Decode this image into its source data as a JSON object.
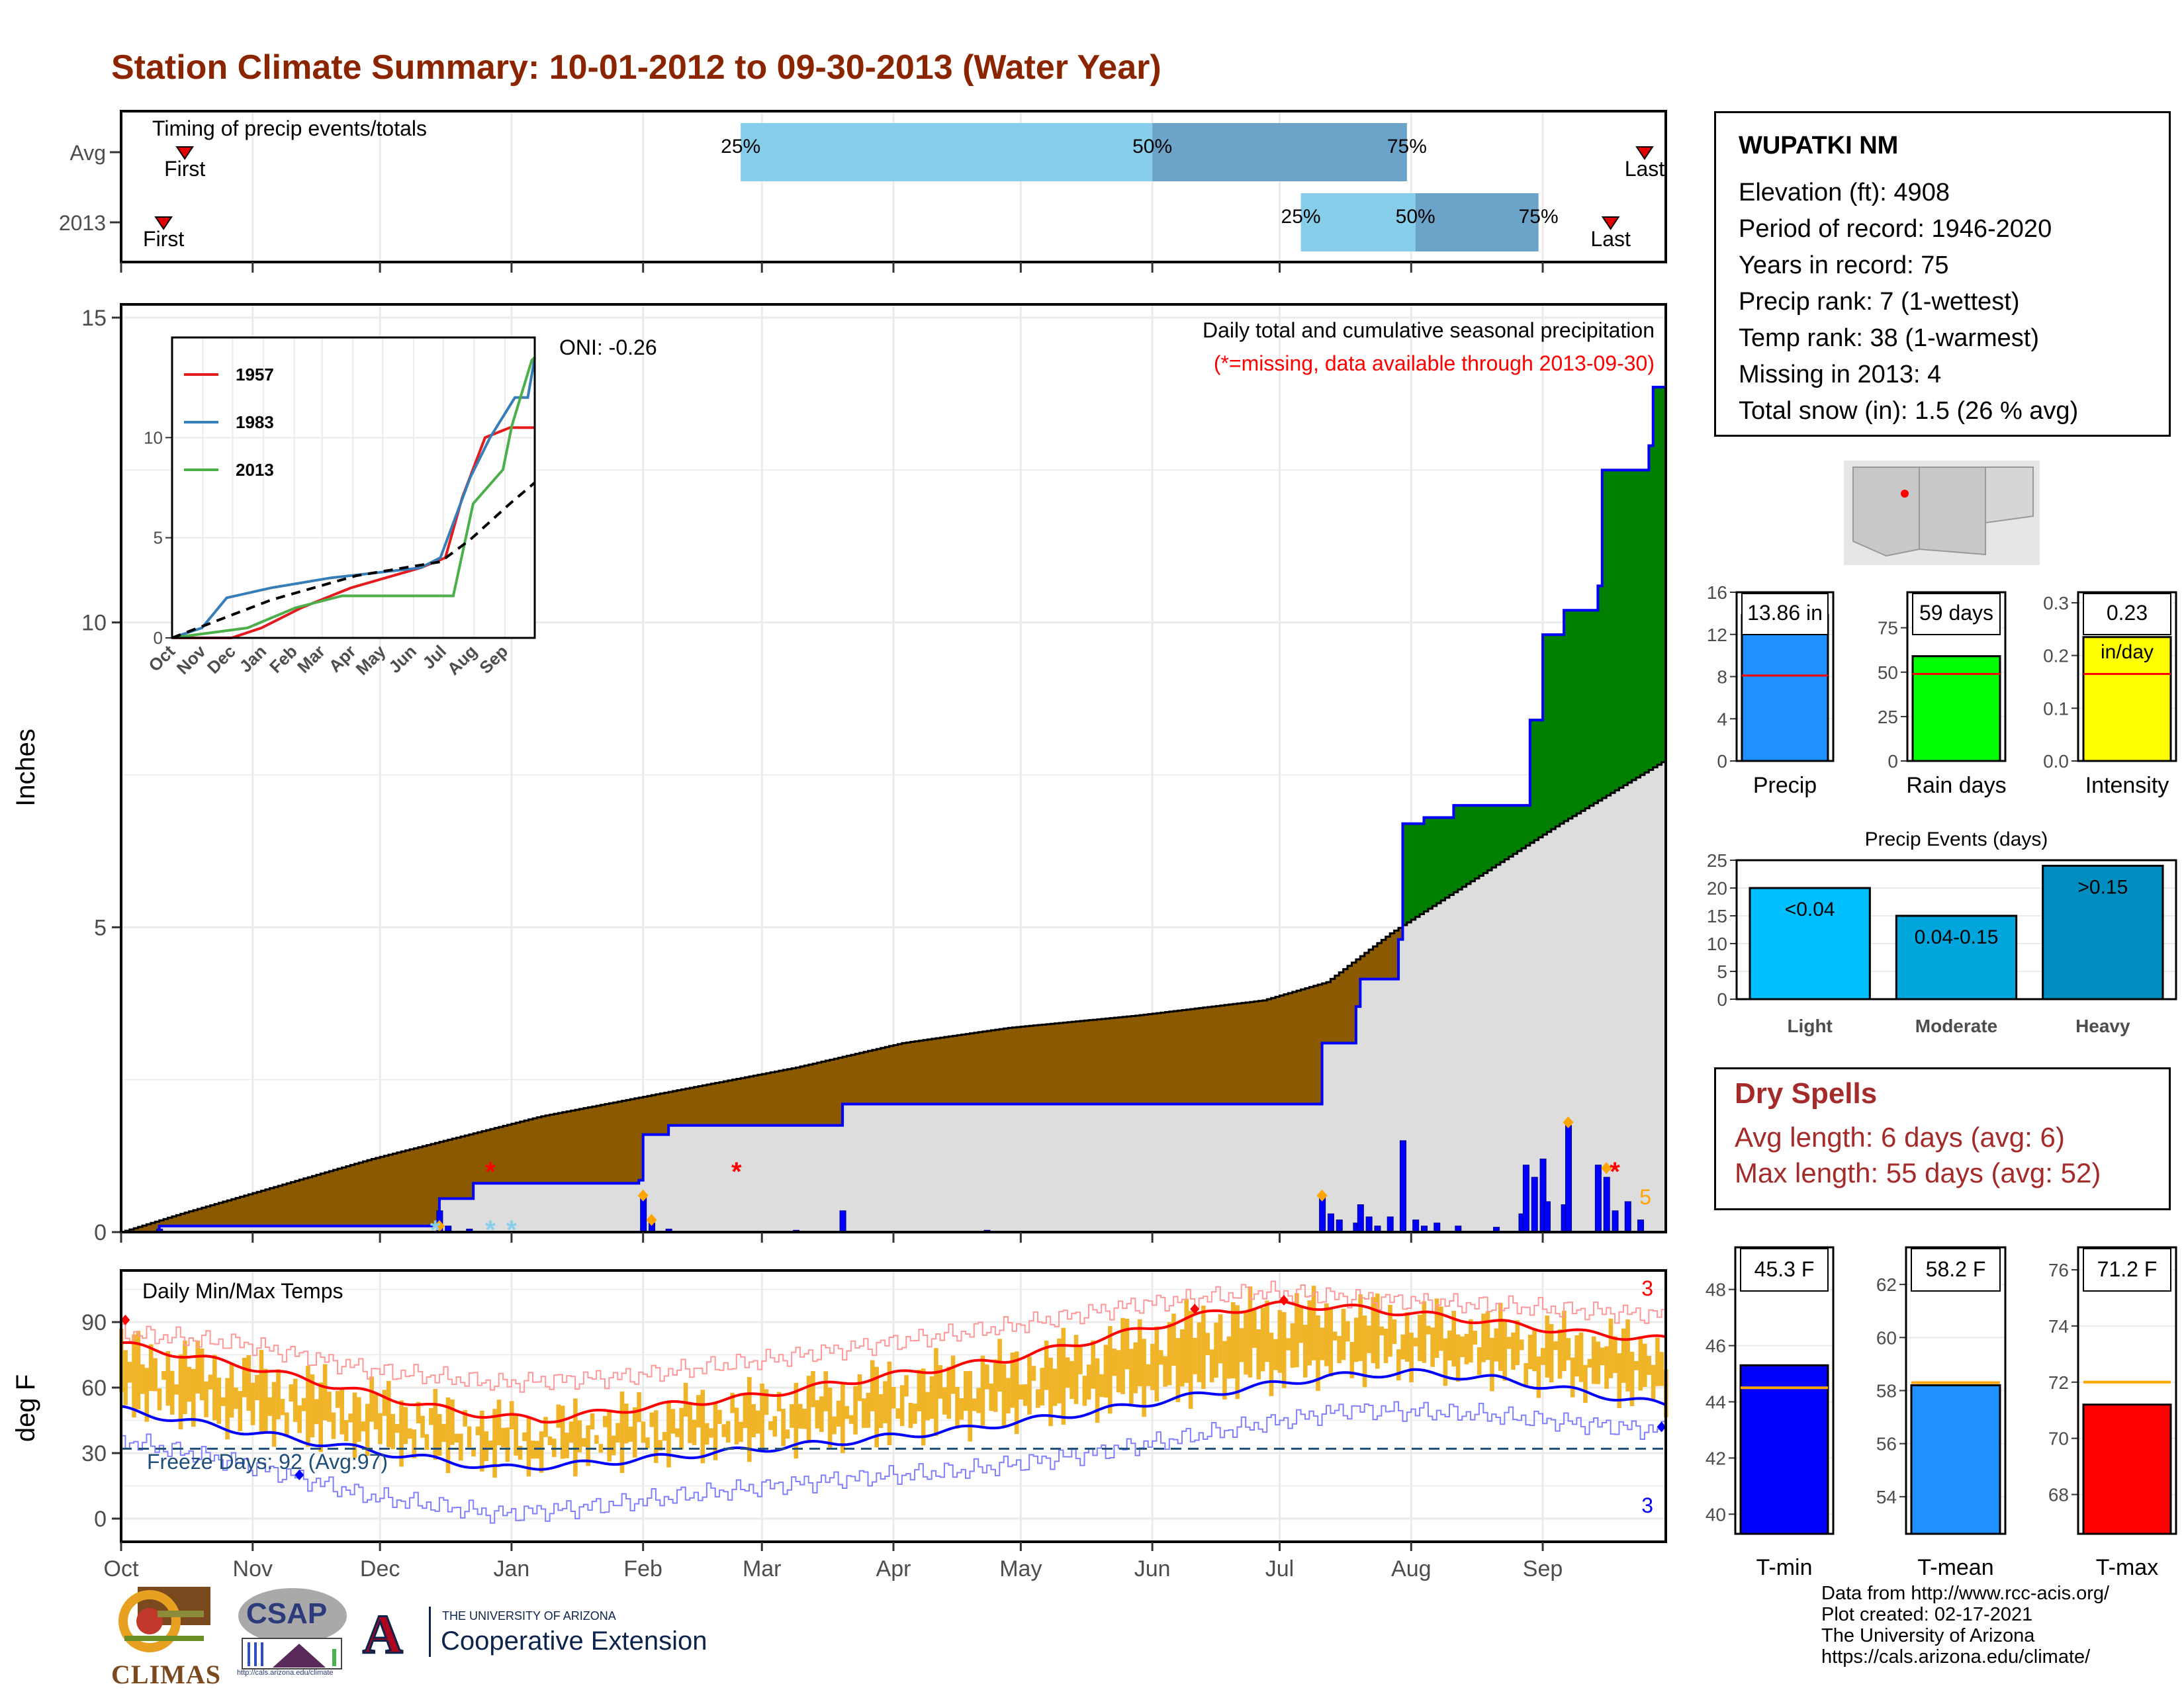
{
  "title": "Station Climate Summary: 10-01-2012 to 09-30-2013 (Water Year)",
  "station": {
    "name": "WUPATKI NM",
    "lines": [
      "Elevation (ft): 4908",
      "Period of record: 1946-2020",
      "Years in record: 75",
      "Precip rank: 7 (1-wettest)",
      "Temp rank: 38 (1-warmest)",
      "Missing in 2013: 4",
      "Total snow (in): 1.5 (26 % avg)"
    ]
  },
  "dry_spells": {
    "title": "Dry Spells",
    "avg": "Avg length: 6 days (avg: 6)",
    "max": "Max length: 55 days (avg: 52)"
  },
  "footer": {
    "lines": [
      "Data from http://www.rcc-acis.org/",
      "Plot created: 02-17-2021",
      "The University of Arizona",
      "https://cals.arizona.edu/climate/"
    ]
  },
  "logos": {
    "climas": "CLIMAS",
    "csap": "CSAP",
    "csap_url": "http://cals.arizona.edu/climate",
    "ua_line1": "THE UNIVERSITY OF ARIZONA",
    "ua_line2": "Cooperative Extension",
    "ua_mark": "A"
  },
  "chart_data": [
    {
      "id": "timing",
      "type": "bar",
      "title": "Timing of precip events/totals",
      "rows": [
        "Avg",
        "2013"
      ],
      "avg": {
        "first": "Oct 16",
        "q25": "Feb 24",
        "q50": "Jun 1",
        "q75": "Jul 31",
        "last": "Sep 25"
      },
      "y2013": {
        "first": "Oct 11",
        "q25": "Jul 6",
        "q50": "Aug 2",
        "q75": "Aug 31",
        "last": "Sep 17"
      },
      "labels": {
        "first": "First",
        "last": "Last",
        "q25": "25%",
        "q50": "50%",
        "q75": "75%"
      },
      "colors": {
        "light": "#87ceeb",
        "dark": "#6ba3c9",
        "marker": "#e00000"
      }
    },
    {
      "id": "precip",
      "type": "area",
      "title": "Daily total and cumulative seasonal precipitation",
      "subtitle": "(*=missing, data available through 2013-09-30)",
      "ylabel": "Inches",
      "ylim": [
        0,
        15
      ],
      "yticks": [
        0,
        5,
        10,
        15
      ],
      "oni": "ONI: -0.26",
      "corner_count": "5",
      "months": [
        "Oct",
        "Nov",
        "Dec",
        "Jan",
        "Feb",
        "Mar",
        "Apr",
        "May",
        "Jun",
        "Jul",
        "Aug",
        "Sep"
      ],
      "cumulative_2013": [
        [
          1,
          0
        ],
        [
          10,
          0.1
        ],
        [
          70,
          0.1
        ],
        [
          76,
          0.55
        ],
        [
          84,
          0.8
        ],
        [
          123,
          0.85
        ],
        [
          124,
          1.6
        ],
        [
          130,
          1.75
        ],
        [
          170,
          1.75
        ],
        [
          171,
          2.1
        ],
        [
          283,
          2.1
        ],
        [
          284,
          3.1
        ],
        [
          292,
          3.7
        ],
        [
          293,
          4.15
        ],
        [
          302,
          4.8
        ],
        [
          303,
          6.7
        ],
        [
          308,
          6.8
        ],
        [
          315,
          7.0
        ],
        [
          332,
          7.0
        ],
        [
          333,
          8.4
        ],
        [
          336,
          9.8
        ],
        [
          341,
          10.2
        ],
        [
          349,
          10.6
        ],
        [
          350,
          12.5
        ],
        [
          361,
          12.9
        ],
        [
          362,
          13.86
        ],
        [
          365,
          13.86
        ]
      ],
      "cumulative_avg": [
        [
          1,
          0
        ],
        [
          15,
          0.3
        ],
        [
          60,
          1.2
        ],
        [
          100,
          1.9
        ],
        [
          130,
          2.3
        ],
        [
          160,
          2.7
        ],
        [
          185,
          3.1
        ],
        [
          210,
          3.35
        ],
        [
          240,
          3.55
        ],
        [
          270,
          3.8
        ],
        [
          285,
          4.1
        ],
        [
          300,
          4.9
        ],
        [
          320,
          5.8
        ],
        [
          340,
          6.7
        ],
        [
          365,
          7.75
        ]
      ],
      "daily_bars": [
        [
          10,
          0.05
        ],
        [
          76,
          0.35
        ],
        [
          78,
          0.1
        ],
        [
          83,
          0.05
        ],
        [
          124,
          0.6
        ],
        [
          126,
          0.15
        ],
        [
          130,
          0.05
        ],
        [
          160,
          0.03
        ],
        [
          171,
          0.35
        ],
        [
          205,
          0.03
        ],
        [
          284,
          0.6
        ],
        [
          286,
          0.3
        ],
        [
          288,
          0.2
        ],
        [
          292,
          0.15
        ],
        [
          293,
          0.45
        ],
        [
          295,
          0.25
        ],
        [
          297,
          0.1
        ],
        [
          300,
          0.25
        ],
        [
          303,
          1.5
        ],
        [
          306,
          0.2
        ],
        [
          308,
          0.1
        ],
        [
          311,
          0.15
        ],
        [
          316,
          0.1
        ],
        [
          325,
          0.08
        ],
        [
          331,
          0.3
        ],
        [
          332,
          1.1
        ],
        [
          334,
          0.9
        ],
        [
          336,
          1.2
        ],
        [
          337,
          0.5
        ],
        [
          341,
          0.45
        ],
        [
          342,
          1.75
        ],
        [
          349,
          1.1
        ],
        [
          351,
          0.9
        ],
        [
          353,
          0.35
        ],
        [
          356,
          0.5
        ],
        [
          359,
          0.2
        ]
      ],
      "legend": {
        "above_avg": "#007f00",
        "below_avg": "#8b5a00",
        "cumulative_line": "#0000ff",
        "avg_area": "#dddddd",
        "missing": "#ff0000"
      }
    },
    {
      "id": "inset",
      "type": "line",
      "ylim": [
        0,
        15
      ],
      "yticks": [
        0,
        5,
        10
      ],
      "months": [
        "Oct",
        "Nov",
        "Dec",
        "Jan",
        "Feb",
        "Mar",
        "Apr",
        "May",
        "Jun",
        "Jul",
        "Aug",
        "Sep"
      ],
      "series": [
        {
          "name": "1957",
          "color": "#e41a1c",
          "points": [
            [
              0,
              0
            ],
            [
              60,
              0
            ],
            [
              90,
              0.5
            ],
            [
              130,
              1.5
            ],
            [
              180,
              2.5
            ],
            [
              250,
              3.5
            ],
            [
              275,
              4
            ],
            [
              292,
              7
            ],
            [
              315,
              10
            ],
            [
              340,
              10.5
            ],
            [
              365,
              10.5
            ]
          ]
        },
        {
          "name": "1983",
          "color": "#377eb8",
          "points": [
            [
              0,
              0
            ],
            [
              30,
              0.5
            ],
            [
              55,
              2
            ],
            [
              100,
              2.5
            ],
            [
              160,
              3
            ],
            [
              250,
              3.5
            ],
            [
              270,
              4
            ],
            [
              300,
              8
            ],
            [
              320,
              10
            ],
            [
              345,
              12
            ],
            [
              358,
              12
            ],
            [
              365,
              14
            ]
          ]
        },
        {
          "name": "2013",
          "color": "#4daf4a",
          "points": [
            [
              0,
              0
            ],
            [
              76,
              0.5
            ],
            [
              124,
              1.5
            ],
            [
              171,
              2.1
            ],
            [
              283,
              2.1
            ],
            [
              303,
              6.7
            ],
            [
              333,
              8.4
            ],
            [
              342,
              10.6
            ],
            [
              362,
              13.86
            ],
            [
              365,
              14
            ]
          ]
        },
        {
          "name": "avg",
          "color": "#000000",
          "dashed": true,
          "points": [
            [
              0,
              0
            ],
            [
              100,
              1.9
            ],
            [
              185,
              3.1
            ],
            [
              270,
              3.8
            ],
            [
              300,
              4.9
            ],
            [
              340,
              6.7
            ],
            [
              365,
              7.75
            ]
          ]
        }
      ]
    },
    {
      "id": "temps",
      "type": "bar",
      "title": "Daily Min/Max Temps",
      "ylabel": "deg F",
      "ylim": [
        -10,
        110
      ],
      "yticks": [
        0,
        30,
        60,
        90
      ],
      "months": [
        "Oct",
        "Nov",
        "Dec",
        "Jan",
        "Feb",
        "Mar",
        "Apr",
        "May",
        "Jun",
        "Jul",
        "Aug",
        "Sep"
      ],
      "freeze_label": "Freeze Days: 92 (Avg:97)",
      "freeze_line": 32,
      "count_max": "3",
      "count_min": "3",
      "avg_max_curve": [
        [
          1,
          80
        ],
        [
          30,
          70
        ],
        [
          60,
          57
        ],
        [
          80,
          49
        ],
        [
          100,
          45
        ],
        [
          120,
          50
        ],
        [
          150,
          56
        ],
        [
          180,
          65
        ],
        [
          210,
          73
        ],
        [
          240,
          86
        ],
        [
          260,
          95
        ],
        [
          275,
          98
        ],
        [
          295,
          96
        ],
        [
          320,
          91
        ],
        [
          345,
          85
        ],
        [
          365,
          82
        ]
      ],
      "avg_min_curve": [
        [
          1,
          50
        ],
        [
          30,
          40
        ],
        [
          60,
          31
        ],
        [
          90,
          23
        ],
        [
          110,
          25
        ],
        [
          140,
          30
        ],
        [
          170,
          35
        ],
        [
          200,
          41
        ],
        [
          230,
          49
        ],
        [
          260,
          58
        ],
        [
          285,
          65
        ],
        [
          305,
          67
        ],
        [
          325,
          64
        ],
        [
          345,
          58
        ],
        [
          365,
          52
        ]
      ],
      "record_max_curve": [
        [
          1,
          85
        ],
        [
          30,
          80
        ],
        [
          60,
          68
        ],
        [
          90,
          62
        ],
        [
          120,
          65
        ],
        [
          150,
          72
        ],
        [
          180,
          80
        ],
        [
          210,
          88
        ],
        [
          240,
          98
        ],
        [
          270,
          104
        ],
        [
          300,
          100
        ],
        [
          330,
          97
        ],
        [
          365,
          93
        ]
      ],
      "record_min_curve": [
        [
          1,
          36
        ],
        [
          30,
          25
        ],
        [
          60,
          10
        ],
        [
          90,
          2
        ],
        [
          110,
          5
        ],
        [
          140,
          12
        ],
        [
          170,
          18
        ],
        [
          200,
          22
        ],
        [
          230,
          30
        ],
        [
          260,
          40
        ],
        [
          290,
          50
        ],
        [
          320,
          48
        ],
        [
          365,
          40
        ]
      ],
      "colors": {
        "bars": "#f0b428",
        "avg_max": "#ff0000",
        "avg_min": "#0000ff",
        "rec_max": "#ff9999",
        "rec_min": "#8080ff",
        "freeze": "#1f4e79"
      }
    },
    {
      "id": "summary_bars",
      "type": "bar",
      "panels": [
        {
          "label": "Precip",
          "value": 13.86,
          "avg": 8.1,
          "annot": "13.86 in",
          "ylim": [
            0,
            16
          ],
          "yticks": [
            0,
            4,
            8,
            12,
            16
          ],
          "color": "#1e90ff"
        },
        {
          "label": "Rain days",
          "value": 59,
          "avg": 49,
          "annot": "59 days",
          "ylim": [
            0,
            95
          ],
          "yticks": [
            0,
            25,
            50,
            75
          ],
          "color": "#00ff00"
        },
        {
          "label": "Intensity",
          "value": 0.235,
          "avg": 0.165,
          "annot": "0.23",
          "annot2": "in/day",
          "ylim": [
            0,
            0.32
          ],
          "yticks": [
            0.0,
            0.1,
            0.2,
            0.3
          ],
          "color": "#ffff00"
        }
      ]
    },
    {
      "id": "precip_events",
      "type": "bar",
      "title": "Precip Events (days)",
      "categories": [
        "Light",
        "Moderate",
        "Heavy"
      ],
      "values": [
        20,
        15,
        24
      ],
      "bar_labels": [
        "<0.04",
        "0.04-0.15",
        ">0.15"
      ],
      "ylim": [
        0,
        25
      ],
      "yticks": [
        0,
        5,
        10,
        15,
        20,
        25
      ],
      "colors": [
        "#00bfff",
        "#00a5dc",
        "#008ec1"
      ]
    },
    {
      "id": "temp_summary",
      "type": "bar",
      "panels": [
        {
          "label": "T-min",
          "value": 45.3,
          "avg": 44.5,
          "annot": "45.3 F",
          "ylim": [
            39.3,
            49.5
          ],
          "yticks": [
            40,
            42,
            44,
            46,
            48
          ],
          "color": "#0000ff"
        },
        {
          "label": "T-mean",
          "value": 58.2,
          "avg": 58.3,
          "annot": "58.2 F",
          "ylim": [
            52.6,
            63.4
          ],
          "yticks": [
            54,
            56,
            58,
            60,
            62
          ],
          "color": "#1e90ff"
        },
        {
          "label": "T-max",
          "value": 71.2,
          "avg": 72.0,
          "annot": "71.2 F",
          "ylim": [
            66.6,
            76.8
          ],
          "yticks": [
            68,
            70,
            72,
            74,
            76
          ],
          "color": "#ff0000"
        }
      ]
    }
  ]
}
